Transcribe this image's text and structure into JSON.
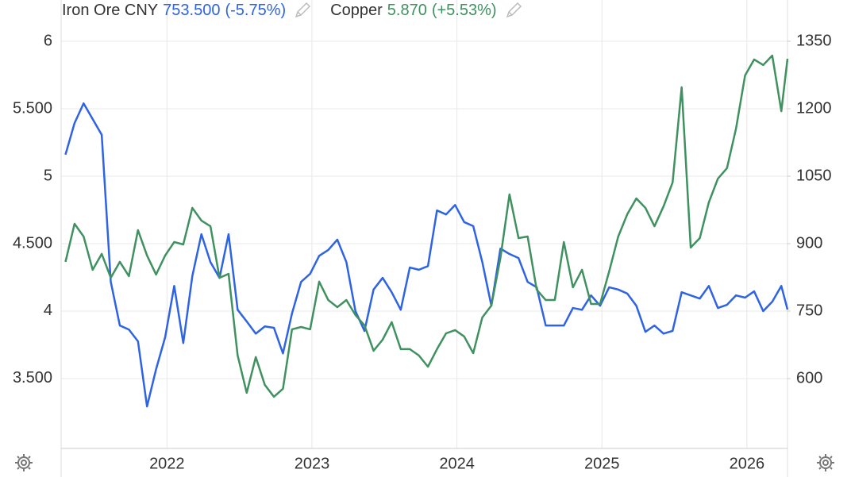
{
  "chart_data": {
    "type": "line",
    "x": [
      2021.3,
      2021.3625,
      2021.425,
      2021.4875,
      2021.55,
      2021.6125,
      2021.675,
      2021.7375,
      2021.8,
      2021.8625,
      2021.925,
      2021.9875,
      2022.05,
      2022.1125,
      2022.175,
      2022.2375,
      2022.3,
      2022.3625,
      2022.425,
      2022.4875,
      2022.55,
      2022.6125,
      2022.675,
      2022.7375,
      2022.8,
      2022.8625,
      2022.925,
      2022.9875,
      2023.05,
      2023.1125,
      2023.175,
      2023.2375,
      2023.3,
      2023.3625,
      2023.425,
      2023.4875,
      2023.55,
      2023.6125,
      2023.675,
      2023.7375,
      2023.8,
      2023.8625,
      2023.925,
      2023.9875,
      2024.05,
      2024.1125,
      2024.175,
      2024.2375,
      2024.3,
      2024.3625,
      2024.425,
      2024.4875,
      2024.55,
      2024.6125,
      2024.675,
      2024.7375,
      2024.8,
      2024.8625,
      2024.925,
      2024.9875,
      2025.05,
      2025.1125,
      2025.175,
      2025.2375,
      2025.3,
      2025.3625,
      2025.425,
      2025.4875,
      2025.55,
      2025.6125,
      2025.675,
      2025.7375,
      2025.8,
      2025.8625,
      2025.925,
      2025.9875,
      2026.05,
      2026.1125,
      2026.175,
      2026.2375,
      2026.28
    ],
    "xlim": [
      2021.27,
      2026.28
    ],
    "xticks": [
      2022,
      2023,
      2024,
      2025,
      2026
    ],
    "series": [
      {
        "name": "Iron Ore CNY",
        "legend_value": "753.500",
        "legend_change": "(-5.75%)",
        "color": "#2e63e6",
        "axis": "y2",
        "values": [
          1098,
          1168,
          1212,
          1177,
          1142,
          815,
          718,
          709,
          683,
          538,
          621,
          692,
          806,
          679,
          828,
          921,
          859,
          824,
          921,
          753,
          727,
          700,
          716,
          713,
          656,
          745,
          815,
          833,
          873,
          886,
          909,
          859,
          750,
          706,
          798,
          824,
          792,
          753,
          847,
          842,
          850,
          974,
          965,
          986,
          948,
          939,
          859,
          762,
          889,
          877,
          868,
          815,
          803,
          718,
          718,
          718,
          757,
          753,
          785,
          762,
          803,
          798,
          789,
          762,
          704,
          718,
          700,
          706,
          792,
          785,
          778,
          806,
          757,
          764,
          785,
          780,
          794,
          750,
          771,
          806,
          753.5
        ]
      },
      {
        "name": "Copper",
        "legend_value": "5.870",
        "legend_change": "(+5.53%)",
        "color": "#3f9160",
        "values": [
          4.365,
          4.647,
          4.553,
          4.306,
          4.424,
          4.247,
          4.365,
          4.259,
          4.6,
          4.412,
          4.271,
          4.412,
          4.512,
          4.494,
          4.765,
          4.671,
          4.629,
          4.247,
          4.276,
          3.671,
          3.394,
          3.659,
          3.453,
          3.365,
          3.424,
          3.865,
          3.882,
          3.865,
          4.218,
          4.082,
          4.029,
          4.082,
          3.971,
          3.894,
          3.706,
          3.788,
          3.918,
          3.718,
          3.718,
          3.671,
          3.588,
          3.718,
          3.835,
          3.859,
          3.812,
          3.688,
          3.953,
          4.041,
          4.394,
          4.865,
          4.541,
          4.553,
          4.159,
          4.082,
          4.082,
          4.512,
          4.176,
          4.306,
          4.053,
          4.053,
          4.294,
          4.553,
          4.718,
          4.835,
          4.765,
          4.629,
          4.776,
          4.953,
          5.659,
          4.471,
          4.541,
          4.806,
          4.982,
          5.059,
          5.353,
          5.747,
          5.865,
          5.824,
          5.894,
          5.482,
          5.87
        ]
      }
    ],
    "ylim": [
      2.982,
      6.306
    ],
    "yticks": [
      {
        "value": 3.5,
        "label": "3.500"
      },
      4,
      {
        "value": 4.5,
        "label": "4.500"
      },
      5,
      {
        "value": 5.5,
        "label": "5.500"
      },
      6
    ],
    "y2lim": [
      444.7,
      1441.8
    ],
    "y2ticks": [
      600,
      750,
      900,
      1050,
      1200,
      1350
    ],
    "grid": true
  }
}
